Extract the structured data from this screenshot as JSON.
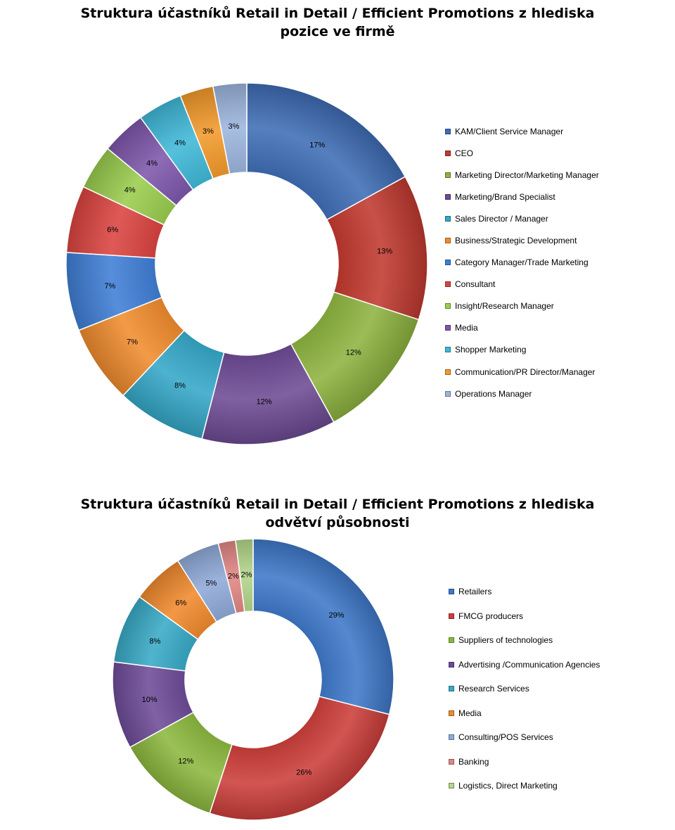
{
  "chart_data": [
    {
      "type": "pie",
      "title_line1": "Struktura účastníků Retail in Detail / Efficient Promotions  z hlediska",
      "title_line2": "pozice ve firmě",
      "legend_position": "right",
      "categories": [
        "KAM/Client Service Manager",
        "CEO",
        "Marketing Director/Marketing Manager",
        "Marketing/Brand Specialist",
        "Sales Director / Manager",
        "Business/Strategic Development",
        "Category Manager/Trade Marketing",
        "Consultant",
        "Insight/Research Manager",
        "Media",
        "Shopper Marketing",
        "Communication/PR  Director/Manager",
        "Operations Manager"
      ],
      "values": [
        17,
        13,
        12,
        12,
        8,
        7,
        7,
        6,
        4,
        4,
        4,
        3,
        3
      ],
      "labels": [
        "17%",
        "13%",
        "12%",
        "12%",
        "8%",
        "7%",
        "7%",
        "6%",
        "4%",
        "4%",
        "4%",
        "3%",
        "3%"
      ],
      "colors": [
        "#3E6DB5",
        "#C0392F",
        "#8DB33F",
        "#6D4A94",
        "#35A8C8",
        "#F08C2E",
        "#3F7FD6",
        "#DB4440",
        "#9ACD4E",
        "#7D57AB",
        "#3FB8D8",
        "#F39A2B",
        "#9CB5DD"
      ]
    },
    {
      "type": "pie",
      "title_line1": "Struktura účastníků Retail in Detail / Efficient Promotions  z hlediska",
      "title_line2": "odvětví působnosti",
      "legend_position": "right",
      "categories": [
        "Retailers",
        "FMCG producers",
        "Suppliers of technologies",
        "Advertising /Communication Agencies",
        "Research Services",
        "Media",
        "Consulting/POS Services",
        "Banking",
        "Logistics, Direct Marketing"
      ],
      "values": [
        29,
        26,
        12,
        10,
        8,
        6,
        5,
        2,
        2
      ],
      "labels": [
        "29%",
        "26%",
        "12%",
        "10%",
        "8%",
        "6%",
        "5%",
        "2%",
        "2%"
      ],
      "colors": [
        "#3E78C8",
        "#CC3E3A",
        "#8CB83F",
        "#6E4B98",
        "#38AAC6",
        "#F08A2D",
        "#8FAAD8",
        "#E08683",
        "#B3D58A"
      ]
    }
  ]
}
